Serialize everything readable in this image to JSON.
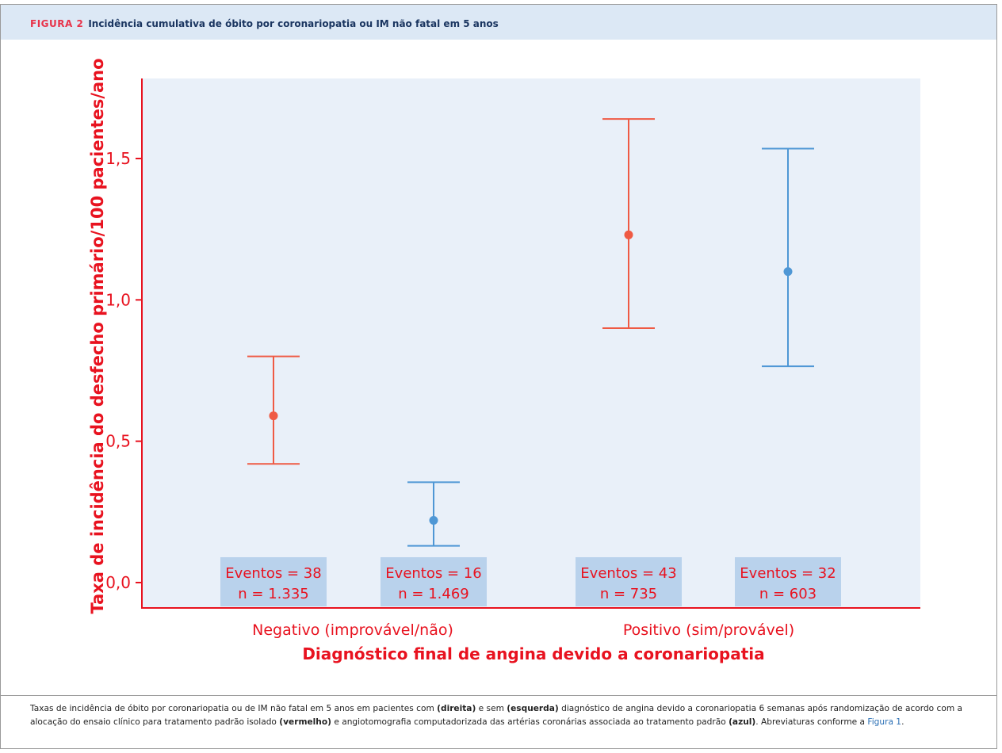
{
  "header": {
    "figure_label": "FIGURA 2",
    "figure_title": "Incidência cumulativa de óbito por coronariopatia ou IM não fatal em 5 anos"
  },
  "colors": {
    "red": "#ef5a44",
    "blue": "#4f97d5",
    "axis_red": "#e8121f",
    "plot_bg": "#e9f0f9",
    "box_bg": "#b9d2ec",
    "header_bg": "#dce8f5"
  },
  "chart_data": {
    "type": "scatter",
    "ylabel": "Taxa de incidência do desfecho primário/100 pacientes/ano",
    "xlabel": "Diagnóstico final de angina devido a coronariopatia",
    "ylim": [
      -0.1,
      1.78
    ],
    "yticks": [
      0.0,
      0.5,
      1.0,
      1.5
    ],
    "ytick_labels": [
      "0,0",
      "0,5",
      "1,0",
      "1,5"
    ],
    "categories": [
      "Negativo (improvável/não)",
      "Positivo (sim/provável)"
    ],
    "series": [
      {
        "color_key": "red",
        "points": [
          {
            "category": 0,
            "y": 0.59,
            "lower": 0.42,
            "upper": 0.8,
            "events_label": "Eventos = 38",
            "n_label": "n = 1.335"
          },
          {
            "category": 1,
            "y": 1.23,
            "lower": 0.9,
            "upper": 1.64,
            "events_label": "Eventos = 43",
            "n_label": "n = 735"
          }
        ]
      },
      {
        "color_key": "blue",
        "points": [
          {
            "category": 0,
            "y": 0.22,
            "lower": 0.13,
            "upper": 0.355,
            "events_label": "Eventos = 16",
            "n_label": "n = 1.469"
          },
          {
            "category": 1,
            "y": 1.1,
            "lower": 0.765,
            "upper": 1.535,
            "events_label": "Eventos = 32",
            "n_label": "n = 603"
          }
        ]
      }
    ],
    "grid": false
  },
  "caption": {
    "t1": "Taxas de incidência de óbito por coronariopatia ou de IM não fatal em 5 anos em pacientes com ",
    "b1": "(direita)",
    "t2": " e sem ",
    "b2": "(esquerda)",
    "t3": " diagnóstico de angina devido a coronariopatia 6 semanas após randomização de acordo com a alocação do ensaio clínico para tratamento padrão isolado ",
    "b3": "(vermelho)",
    "t4": " e angiotomografia computadorizada das artérias coronárias associada ao tratamento padrão ",
    "b4": "(azul)",
    "t5": ". Abreviaturas conforme a ",
    "link": "Figura 1",
    "t6": "."
  }
}
